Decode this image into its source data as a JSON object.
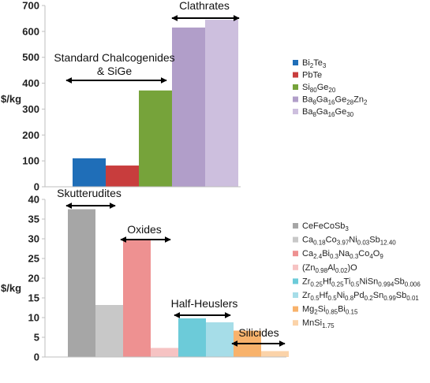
{
  "chart_data": [
    {
      "type": "bar",
      "ylabel": "$/kg",
      "ylim": [
        0,
        700
      ],
      "yticks": [
        0,
        100,
        200,
        300,
        400,
        500,
        600,
        700
      ],
      "grid": false,
      "legend_position": "right",
      "series": [
        {
          "name": "Bi2Te3",
          "name_parts": [
            [
              "Bi",
              ""
            ],
            [
              "2",
              "sub"
            ],
            [
              "Te",
              ""
            ],
            [
              "3",
              "sub"
            ]
          ],
          "value": 110,
          "color": "#1f6eb8"
        },
        {
          "name": "PbTe",
          "name_parts": [
            [
              "PbTe",
              ""
            ]
          ],
          "value": 82,
          "color": "#c83d3d"
        },
        {
          "name": "Si80Ge20",
          "name_parts": [
            [
              "Si",
              ""
            ],
            [
              "80",
              "sub"
            ],
            [
              "Ge",
              ""
            ],
            [
              "20",
              "sub"
            ]
          ],
          "value": 372,
          "color": "#76a33a"
        },
        {
          "name": "Ba8Ga16Ge28Zn2",
          "name_parts": [
            [
              "Ba",
              ""
            ],
            [
              "8",
              "sub"
            ],
            [
              "Ga",
              ""
            ],
            [
              "16",
              "sub"
            ],
            [
              "Ge",
              ""
            ],
            [
              "28",
              "sub"
            ],
            [
              "Zn",
              ""
            ],
            [
              "2",
              "sub"
            ]
          ],
          "value": 615,
          "color": "#b19ec9"
        },
        {
          "name": "Ba8Ga16Ge30",
          "name_parts": [
            [
              "Ba",
              ""
            ],
            [
              "8",
              "sub"
            ],
            [
              "Ga",
              ""
            ],
            [
              "16",
              "sub"
            ],
            [
              "Ge",
              ""
            ],
            [
              "30",
              "sub"
            ]
          ],
          "value": 645,
          "color": "#cdbfde"
        }
      ],
      "annotations": [
        {
          "text": "Standard Chalcogenides",
          "group": [
            0,
            2
          ]
        },
        {
          "text": "& SiGe",
          "group": [
            0,
            2
          ]
        },
        {
          "text": "Clathrates",
          "group": [
            3,
            4
          ]
        }
      ]
    },
    {
      "type": "bar",
      "ylabel": "$/kg",
      "ylim": [
        0,
        40
      ],
      "yticks": [
        0,
        5,
        10,
        15,
        20,
        25,
        30,
        35,
        40
      ],
      "grid": false,
      "legend_position": "right",
      "series": [
        {
          "name": "CeFeCoSb3",
          "name_parts": [
            [
              "CeFeCoSb",
              ""
            ],
            [
              "3",
              "sub"
            ]
          ],
          "value": 37.5,
          "color": "#a6a6a6"
        },
        {
          "name": "Ca0.18Co3.97Ni0.03Sb12.40",
          "name_parts": [
            [
              "Ca",
              ""
            ],
            [
              "0.18",
              "sub"
            ],
            [
              "Co",
              ""
            ],
            [
              "3.97",
              "sub"
            ],
            [
              "Ni",
              ""
            ],
            [
              "0.03",
              "sub"
            ],
            [
              "Sb",
              ""
            ],
            [
              "12.40",
              "sub"
            ]
          ],
          "value": 13.2,
          "color": "#c8c8c8"
        },
        {
          "name": "Ca2.4Bi0.3Na0.3Co4O9",
          "name_parts": [
            [
              "Ca",
              ""
            ],
            [
              "2.4",
              "sub"
            ],
            [
              "Bi",
              ""
            ],
            [
              "0.3",
              "sub"
            ],
            [
              "Na",
              ""
            ],
            [
              "0.3",
              "sub"
            ],
            [
              "Co",
              ""
            ],
            [
              "4",
              "sub"
            ],
            [
              "O",
              ""
            ],
            [
              "9",
              "sub"
            ]
          ],
          "value": 30.0,
          "color": "#ee9191"
        },
        {
          "name": "(Zn0.98Al0.02)O",
          "name_parts": [
            [
              "(Zn",
              ""
            ],
            [
              "0.98",
              "sub"
            ],
            [
              "Al",
              ""
            ],
            [
              "0.02",
              "sub"
            ],
            [
              ")O",
              ""
            ]
          ],
          "value": 2.3,
          "color": "#f6c3c3"
        },
        {
          "name": "Zr0.25Hf0.25Ti0.5NiSn0.994Sb0.006",
          "name_parts": [
            [
              "Zr",
              ""
            ],
            [
              "0.25",
              "sub"
            ],
            [
              "Hf",
              ""
            ],
            [
              "0.25",
              "sub"
            ],
            [
              "Ti",
              ""
            ],
            [
              "0.5",
              "sub"
            ],
            [
              "NiSn",
              ""
            ],
            [
              "0.994",
              "sub"
            ],
            [
              "Sb",
              ""
            ],
            [
              "0.006",
              "sub"
            ]
          ],
          "value": 9.8,
          "color": "#6ccbd9"
        },
        {
          "name": "Zr0.5Hf0.5Ni0.8Pd0.2Sn0.99Sb0.01",
          "name_parts": [
            [
              "Zr",
              ""
            ],
            [
              "0.5",
              "sub"
            ],
            [
              "Hf",
              ""
            ],
            [
              "0.5",
              "sub"
            ],
            [
              "Ni",
              ""
            ],
            [
              "0.8",
              "sub"
            ],
            [
              "Pd",
              ""
            ],
            [
              "0.2",
              "sub"
            ],
            [
              "Sn",
              ""
            ],
            [
              "0.99",
              "sub"
            ],
            [
              "Sb",
              ""
            ],
            [
              "0.01",
              "sub"
            ]
          ],
          "value": 8.8,
          "color": "#a6dde8"
        },
        {
          "name": "Mg2Si0.85Bi0.15",
          "name_parts": [
            [
              "Mg",
              ""
            ],
            [
              "2",
              "sub"
            ],
            [
              "Si",
              ""
            ],
            [
              "0.85",
              "sub"
            ],
            [
              "Bi",
              ""
            ],
            [
              "0.15",
              "sub"
            ]
          ],
          "value": 6.7,
          "color": "#f8b26b"
        },
        {
          "name": "MnSi1.75",
          "name_parts": [
            [
              "MnSi",
              ""
            ],
            [
              "1.75",
              "sub"
            ]
          ],
          "value": 1.5,
          "color": "#fbd3a9"
        }
      ],
      "annotations": [
        {
          "text": "Skutterudites",
          "group": [
            0,
            1
          ]
        },
        {
          "text": "Oxides",
          "group": [
            2,
            3
          ]
        },
        {
          "text": "Half-Heuslers",
          "group": [
            4,
            5
          ]
        },
        {
          "text": "Silicides",
          "group": [
            6,
            7
          ]
        }
      ]
    }
  ]
}
